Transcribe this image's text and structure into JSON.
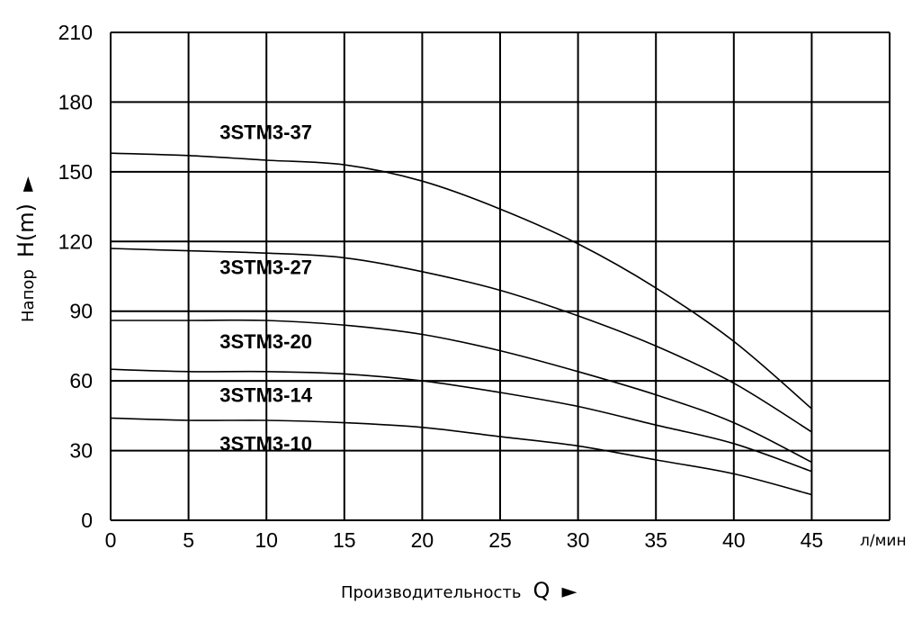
{
  "chart_data": {
    "type": "line",
    "x_ticks": [
      0,
      5,
      10,
      15,
      20,
      25,
      30,
      35,
      40,
      45
    ],
    "y_ticks": [
      0,
      30,
      60,
      90,
      120,
      150,
      180,
      210
    ],
    "xlim": [
      0,
      50
    ],
    "ylim": [
      0,
      210
    ],
    "grid": true,
    "x_unit": "л/мин",
    "xlabel": {
      "text": "Производительность",
      "symbol": "Q",
      "arrow": "►"
    },
    "ylabel": {
      "text": "Напор",
      "symbol": "H(m)",
      "arrow": "►"
    },
    "series": [
      {
        "name": "3STM3-37",
        "label_at": [
          7,
          164
        ],
        "points": [
          [
            0,
            158
          ],
          [
            5,
            157
          ],
          [
            10,
            155
          ],
          [
            15,
            153
          ],
          [
            20,
            146
          ],
          [
            25,
            134
          ],
          [
            30,
            119
          ],
          [
            35,
            100
          ],
          [
            40,
            77
          ],
          [
            45,
            48
          ]
        ]
      },
      {
        "name": "3STM3-27",
        "label_at": [
          7,
          106
        ],
        "points": [
          [
            0,
            117
          ],
          [
            5,
            116
          ],
          [
            10,
            115
          ],
          [
            15,
            113
          ],
          [
            20,
            107
          ],
          [
            25,
            99
          ],
          [
            30,
            88
          ],
          [
            35,
            75
          ],
          [
            40,
            59
          ],
          [
            45,
            38
          ]
        ]
      },
      {
        "name": "3STM3-20",
        "label_at": [
          7,
          74
        ],
        "points": [
          [
            0,
            86
          ],
          [
            5,
            86
          ],
          [
            10,
            86
          ],
          [
            15,
            84
          ],
          [
            20,
            80
          ],
          [
            25,
            73
          ],
          [
            30,
            64
          ],
          [
            35,
            54
          ],
          [
            40,
            42
          ],
          [
            45,
            25
          ]
        ]
      },
      {
        "name": "3STM3-14",
        "label_at": [
          7,
          51
        ],
        "points": [
          [
            0,
            65
          ],
          [
            5,
            64
          ],
          [
            10,
            64
          ],
          [
            15,
            63
          ],
          [
            20,
            60
          ],
          [
            25,
            55
          ],
          [
            30,
            49
          ],
          [
            35,
            41
          ],
          [
            40,
            33
          ],
          [
            45,
            21
          ]
        ]
      },
      {
        "name": "3STM3-10",
        "label_at": [
          7,
          30
        ],
        "points": [
          [
            0,
            44
          ],
          [
            5,
            43
          ],
          [
            10,
            43
          ],
          [
            15,
            42
          ],
          [
            20,
            40
          ],
          [
            25,
            36
          ],
          [
            30,
            32
          ],
          [
            35,
            26
          ],
          [
            40,
            20
          ],
          [
            45,
            11
          ]
        ]
      }
    ]
  }
}
